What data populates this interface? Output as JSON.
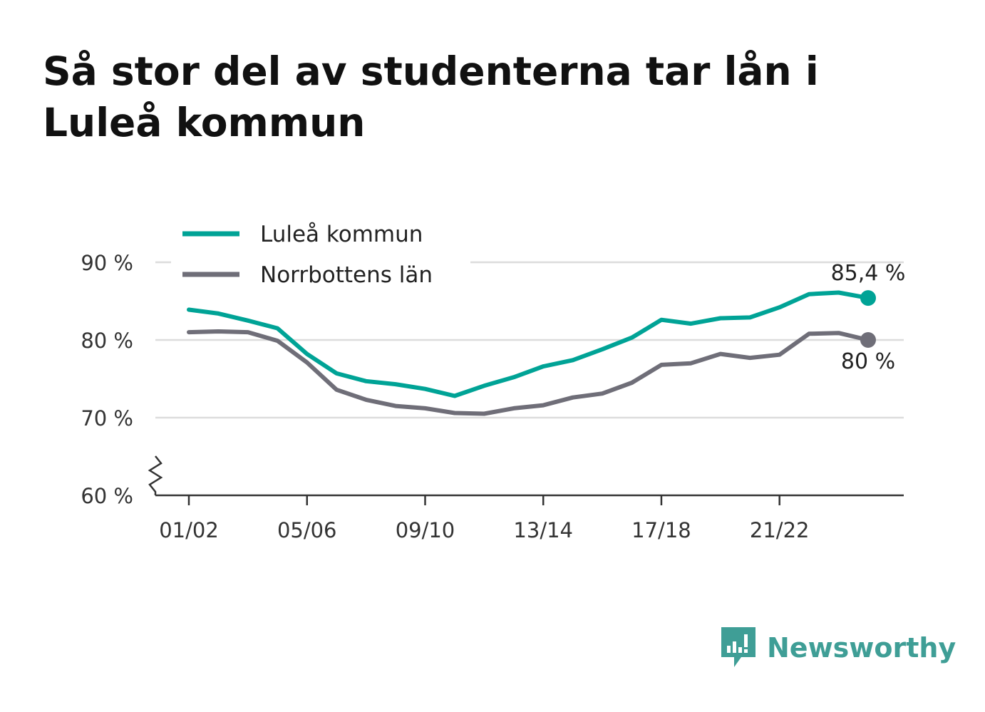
{
  "title": "Så stor del av studenterna tar lån i Luleå kommun",
  "brand": {
    "name": "Newsworthy",
    "icon": "newsworthy-logo-icon",
    "color": "#3f9e96"
  },
  "chart_data": {
    "type": "line",
    "title": "Så stor del av studenterna tar lån i Luleå kommun",
    "xlabel": "",
    "ylabel": "",
    "ylim": [
      60,
      90
    ],
    "yticks": [
      "60 %",
      "70 %",
      "80 %",
      "90 %"
    ],
    "ytick_values": [
      60,
      70,
      80,
      90
    ],
    "axis_break": true,
    "grid": true,
    "legend_position": "top-left",
    "x_tick_labels": [
      "01/02",
      "05/06",
      "09/10",
      "13/14",
      "17/18",
      "21/22"
    ],
    "x_tick_index": [
      0,
      4,
      8,
      12,
      16,
      20
    ],
    "x": [
      "01/02",
      "02/03",
      "03/04",
      "04/05",
      "05/06",
      "06/07",
      "07/08",
      "08/09",
      "09/10",
      "10/11",
      "11/12",
      "12/13",
      "13/14",
      "14/15",
      "15/16",
      "16/17",
      "17/18",
      "18/19",
      "19/20",
      "20/21",
      "21/22",
      "22/23",
      "23/24",
      "24/25"
    ],
    "series": [
      {
        "name": "Luleå kommun",
        "color": "#00a396",
        "values": [
          83.9,
          83.4,
          82.5,
          81.5,
          78.2,
          75.7,
          74.7,
          74.3,
          73.7,
          72.8,
          74.1,
          75.2,
          76.6,
          77.4,
          78.8,
          80.3,
          82.6,
          82.1,
          82.8,
          82.9,
          84.2,
          85.9,
          86.1,
          85.4
        ],
        "end_label": "85,4 %"
      },
      {
        "name": "Norrbottens län",
        "color": "#6f6e78",
        "values": [
          81.0,
          81.1,
          81.0,
          79.9,
          77.1,
          73.6,
          72.3,
          71.5,
          71.2,
          70.6,
          70.5,
          71.2,
          71.6,
          72.6,
          73.1,
          74.5,
          76.8,
          77.0,
          78.2,
          77.7,
          78.1,
          80.8,
          80.9,
          80.0
        ],
        "end_label": "80 %"
      }
    ]
  }
}
